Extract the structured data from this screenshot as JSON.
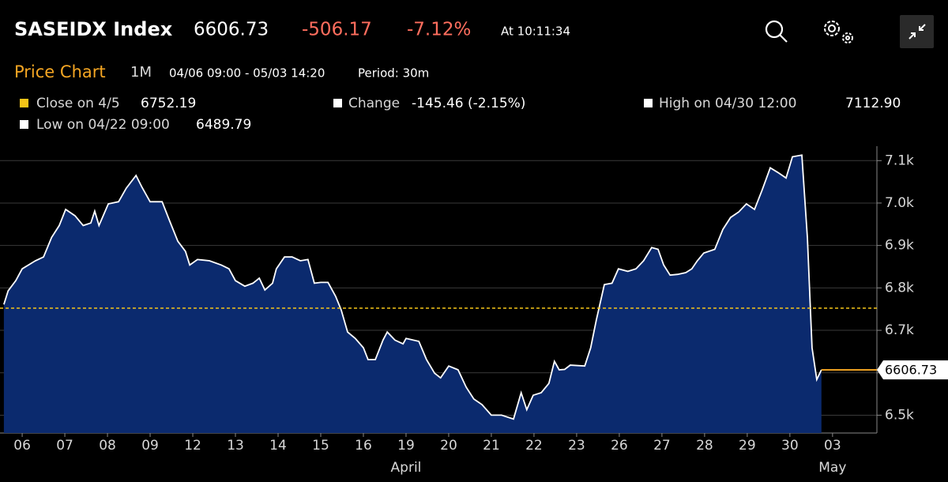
{
  "header": {
    "ticker": "SASEIDX Index",
    "price": 6606.73,
    "change": "-506.17",
    "change_pct": "-7.12%",
    "time": "At 10:11:34"
  },
  "toolbar": {
    "title": "Price Chart",
    "range": "1M",
    "dates": "04/06 09:00 - 05/03 14:20",
    "period": "Period: 30m"
  },
  "legend": {
    "close_label": "Close on 4/5",
    "close_value": 6752.19,
    "change_label": "Change",
    "change_value": "-145.46 (-2.15%)",
    "high_label": "High on 04/30 12:00",
    "high_value": "7112.90",
    "low_label": "Low on 04/22 09:00",
    "low_value": 6489.79
  },
  "chart_data": {
    "type": "area",
    "color": "#ffffff",
    "fill": "#0b2a6e",
    "grid": true,
    "x": [
      -0.43,
      -0.33,
      -0.15,
      0,
      0.31,
      0.5,
      0.69,
      0.87,
      1.02,
      1.24,
      1.43,
      1.61,
      1.7,
      1.8,
      2.02,
      2.26,
      2.44,
      2.67,
      2.81,
      3.0,
      3.28,
      3.46,
      3.65,
      3.83,
      3.93,
      4.11,
      4.39,
      4.67,
      4.85,
      5.0,
      5.22,
      5.41,
      5.56,
      5.69,
      5.87,
      5.96,
      6.15,
      6.33,
      6.52,
      6.7,
      6.85,
      7.0,
      7.17,
      7.35,
      7.48,
      7.63,
      7.81,
      8.0,
      8.11,
      8.28,
      8.46,
      8.56,
      8.74,
      8.93,
      9.0,
      9.3,
      9.48,
      9.67,
      9.81,
      10.0,
      10.22,
      10.41,
      10.59,
      10.78,
      11.0,
      11.24,
      11.52,
      11.7,
      11.83,
      11.98,
      12.17,
      12.35,
      12.48,
      12.59,
      12.72,
      12.85,
      13.19,
      13.33,
      13.46,
      13.65,
      13.83,
      13.98,
      14.2,
      14.39,
      14.57,
      14.76,
      14.91,
      15.04,
      15.19,
      15.37,
      15.56,
      15.7,
      15.83,
      15.98,
      16.24,
      16.43,
      16.61,
      16.8,
      16.98,
      17.17,
      17.35,
      17.54,
      17.72,
      17.91,
      18.06,
      18.28,
      18.41,
      18.52,
      18.63,
      18.74
    ],
    "series": [
      {
        "values": [
          6761,
          6793,
          6817,
          6845,
          6864,
          6873,
          6919,
          6947,
          6985,
          6970,
          6947,
          6953,
          6981,
          6947,
          6998,
          7003,
          7035,
          7065,
          7037,
          7003,
          7003,
          6957,
          6910,
          6886,
          6854,
          6867,
          6864,
          6854,
          6845,
          6817,
          6804,
          6811,
          6823,
          6795,
          6811,
          6845,
          6873,
          6873,
          6864,
          6867,
          6811,
          6813,
          6813,
          6780,
          6748,
          6696,
          6681,
          6659,
          6631,
          6631,
          6677,
          6696,
          6677,
          6668,
          6681,
          6674,
          6631,
          6599,
          6588,
          6616,
          6607,
          6566,
          6538,
          6525,
          6500,
          6500,
          6491,
          6553,
          6513,
          6547,
          6553,
          6575,
          6627,
          6607,
          6608,
          6618,
          6616,
          6659,
          6724,
          6808,
          6811,
          6845,
          6839,
          6845,
          6864,
          6895,
          6891,
          6854,
          6830,
          6832,
          6836,
          6845,
          6864,
          6882,
          6891,
          6938,
          6966,
          6979,
          6998,
          6985,
          7031,
          7083,
          7072,
          7059,
          7109,
          7112.9,
          6919,
          6659,
          6584,
          6607
        ]
      }
    ],
    "xlim": [
      -0.52,
      20.04
    ],
    "xticks": [
      {
        "value": 0,
        "label": "06"
      },
      {
        "value": 1,
        "label": "07"
      },
      {
        "value": 2,
        "label": "08"
      },
      {
        "value": 3,
        "label": "09"
      },
      {
        "value": 4,
        "label": "12"
      },
      {
        "value": 5,
        "label": "13"
      },
      {
        "value": 6,
        "label": "14"
      },
      {
        "value": 7,
        "label": "15"
      },
      {
        "value": 8,
        "label": "16"
      },
      {
        "value": 9,
        "label": "19"
      },
      {
        "value": 10,
        "label": "20"
      },
      {
        "value": 11,
        "label": "21"
      },
      {
        "value": 12,
        "label": "22"
      },
      {
        "value": 13,
        "label": "23"
      },
      {
        "value": 14,
        "label": "26"
      },
      {
        "value": 15,
        "label": "27"
      },
      {
        "value": 16,
        "label": "28"
      },
      {
        "value": 17,
        "label": "29"
      },
      {
        "value": 18,
        "label": "30"
      },
      {
        "value": 19,
        "label": "03"
      }
    ],
    "x_group_labels": [
      {
        "value": 9,
        "label": "April"
      },
      {
        "value": 19,
        "label": "May"
      }
    ],
    "ylim": [
      6458,
      7134
    ],
    "yticks": [
      {
        "value": 6500,
        "label": "6.5k"
      },
      {
        "value": 6600,
        "label": "6.6k"
      },
      {
        "value": 6700,
        "label": "6.7k"
      },
      {
        "value": 6800,
        "label": "6.8k"
      },
      {
        "value": 6900,
        "label": "6.9k"
      },
      {
        "value": 7000,
        "label": "7.0k"
      },
      {
        "value": 7100,
        "label": "7.1k"
      }
    ]
  }
}
